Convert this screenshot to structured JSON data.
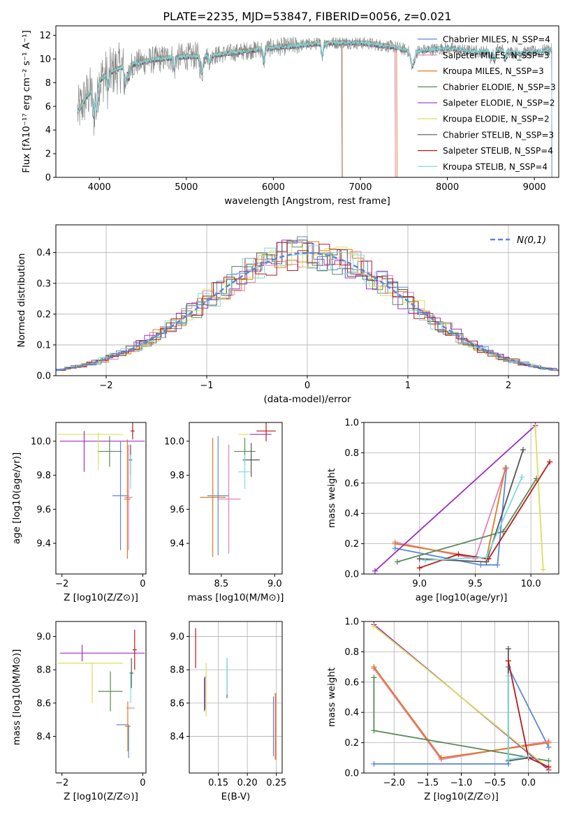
{
  "figure_title": "PLATE=2235, MJD=53847, FIBERID=0056, z=0.021",
  "colors": {
    "Chabrier MILES": "#5b87d8",
    "Salpeter MILES": "#e57fb8",
    "Kroupa MILES": "#e07a1f",
    "Chabrier ELODIE": "#5a8a5a",
    "Salpeter ELODIE": "#9b30c0",
    "Kroupa ELODIE": "#d8e05a",
    "Chabrier STELIB": "#555555",
    "Salpeter STELIB": "#b81818",
    "Kroupa STELIB": "#7fdbe0",
    "data_gray": "#8a8a8a",
    "normal_curve": "#5b87d8"
  },
  "chart_data": [
    {
      "id": "spectrum",
      "type": "line",
      "title": "PLATE=2235, MJD=53847, FIBERID=0056, z=0.021",
      "xlabel": "wavelength [Angstrom, rest frame]",
      "ylabel": "Flux [fλ10⁻¹⁷ erg cm⁻² s⁻¹ A⁻¹]",
      "xlim": [
        3500,
        9280
      ],
      "ylim": [
        0,
        12.8
      ],
      "xticks": [
        4000,
        5000,
        6000,
        7000,
        8000,
        9000
      ],
      "yticks": [
        0,
        2,
        4,
        6,
        8,
        10,
        12
      ],
      "grid": false,
      "legend_position": "top-right",
      "legend": [
        "Chabrier MILES, N_SSP=4",
        "Salpeter MILES, N_SSP=3",
        "Kroupa MILES, N_SSP=3",
        "Chabrier ELODIE, N_SSP=3",
        "Salpeter ELODIE, N_SSP=2",
        "Kroupa ELODIE, N_SSP=2",
        "Chabrier STELIB, N_SSP=3",
        "Salpeter STELIB, N_SSP=4",
        "Kroupa STELIB, N_SSP=4"
      ],
      "continuum": {
        "x": [
          3750,
          3850,
          4000,
          4100,
          4250,
          4400,
          4600,
          4800,
          5000,
          5300,
          5600,
          5900,
          6200,
          6500,
          6800,
          7100,
          7400,
          7600,
          7800,
          8000,
          8200,
          8400,
          8600,
          8800,
          9000,
          9200
        ],
        "y": [
          5.5,
          6.8,
          8.2,
          8.8,
          9.3,
          9.6,
          9.9,
          10.1,
          10.2,
          10.3,
          10.6,
          10.9,
          11.1,
          11.3,
          11.4,
          11.3,
          11.0,
          10.6,
          10.8,
          10.9,
          10.7,
          10.6,
          10.8,
          10.5,
          10.6,
          10.8
        ]
      }
    },
    {
      "id": "residuals",
      "type": "line",
      "xlabel": "(data-model)/error",
      "ylabel": "Normed distribution",
      "xlim": [
        -2.5,
        2.5
      ],
      "ylim": [
        0,
        0.49
      ],
      "xticks": [
        -2,
        -1,
        0,
        1,
        2
      ],
      "yticks": [
        0.0,
        0.1,
        0.2,
        0.3,
        0.4
      ],
      "grid": true,
      "legend_position": "top-right",
      "legend": [
        "N(0,1)"
      ],
      "series": [
        {
          "name": "N(0,1)",
          "mean": 0,
          "std": 1
        }
      ]
    },
    {
      "id": "age_vs_z",
      "type": "scatter",
      "xlabel": "Z [log10(Z/Z⊙)]",
      "ylabel": "age  [log10(age/yr)]",
      "xlim": [
        -2.15,
        0.08
      ],
      "ylim": [
        9.22,
        10.11
      ],
      "xticks": [
        -2,
        0
      ],
      "yticks": [
        9.4,
        9.6,
        9.8,
        10.0
      ],
      "grid": false,
      "points": [
        {
          "model": "Kroupa ELODIE",
          "x": -1.3,
          "xerr": 0.8,
          "y": 10.04,
          "yerr": 0.0
        },
        {
          "model": "Salpeter ELODIE",
          "x": -1.0,
          "xerr": 1.05,
          "y": 10.0,
          "yerr": 0.0
        },
        {
          "model": "Salpeter ELODIE",
          "x": -1.45,
          "xerr": 0.0,
          "y": 9.94,
          "yerr": 0.12
        },
        {
          "model": "Chabrier ELODIE",
          "x": -0.82,
          "xerr": 0.3,
          "y": 9.94,
          "yerr": 0.09
        },
        {
          "model": "Kroupa ELODIE",
          "x": -1.1,
          "xerr": 0.0,
          "y": 9.94,
          "yerr": 0.11
        },
        {
          "model": "Chabrier STELIB",
          "x": -0.3,
          "xerr": 0.04,
          "y": 9.89,
          "yerr": 0.09
        },
        {
          "model": "Salpeter STELIB",
          "x": -0.25,
          "xerr": 0.05,
          "y": 10.06,
          "yerr": 0.05
        },
        {
          "model": "Kroupa STELIB",
          "x": -0.3,
          "xerr": 0.0,
          "y": 9.82,
          "yerr": 0.1
        },
        {
          "model": "Chabrier MILES",
          "x": -0.55,
          "xerr": 0.2,
          "y": 9.68,
          "yerr": 0.32
        },
        {
          "model": "Salpeter MILES",
          "x": -0.35,
          "xerr": 0.1,
          "y": 9.67,
          "yerr": 0.31
        },
        {
          "model": "Kroupa MILES",
          "x": -0.38,
          "xerr": 0.08,
          "y": 9.66,
          "yerr": 0.35
        }
      ]
    },
    {
      "id": "age_vs_mass",
      "type": "scatter",
      "xlabel": "mass [log10(M/M⊙)]",
      "xlim": [
        8.2,
        9.07
      ],
      "ylim": [
        9.22,
        10.11
      ],
      "xticks": [
        8.5,
        9.0
      ],
      "yticks": [
        9.4,
        9.6,
        9.8,
        10.0
      ],
      "grid": false,
      "points": [
        {
          "model": "Kroupa ELODIE",
          "x": 8.78,
          "xerr": 0.12,
          "y": 10.04,
          "yerr": 0.0
        },
        {
          "model": "Salpeter ELODIE",
          "x": 8.87,
          "xerr": 0.1,
          "y": 10.04,
          "yerr": 0.0
        },
        {
          "model": "Chabrier ELODIE",
          "x": 8.72,
          "xerr": 0.1,
          "y": 9.94,
          "yerr": 0.08
        },
        {
          "model": "Chabrier STELIB",
          "x": 8.78,
          "xerr": 0.08,
          "y": 9.89,
          "yerr": 0.1
        },
        {
          "model": "Salpeter STELIB",
          "x": 8.92,
          "xerr": 0.09,
          "y": 10.06,
          "yerr": 0.06
        },
        {
          "model": "Kroupa STELIB",
          "x": 8.72,
          "xerr": 0.06,
          "y": 9.82,
          "yerr": 0.1
        },
        {
          "model": "Chabrier MILES",
          "x": 8.47,
          "xerr": 0.1,
          "y": 9.68,
          "yerr": 0.35
        },
        {
          "model": "Salpeter MILES",
          "x": 8.57,
          "xerr": 0.11,
          "y": 9.66,
          "yerr": 0.32
        },
        {
          "model": "Kroupa MILES",
          "x": 8.42,
          "xerr": 0.12,
          "y": 9.67,
          "yerr": 0.35
        }
      ]
    },
    {
      "id": "mass_weight_vs_age",
      "type": "line",
      "xlabel": "age  [log10(age/yr)]",
      "ylabel": "mass weight",
      "xlim": [
        8.5,
        10.25
      ],
      "ylim": [
        0,
        1.0
      ],
      "xticks": [
        9.0,
        9.5,
        10.0
      ],
      "yticks": [
        0.0,
        0.2,
        0.4,
        0.6,
        0.8,
        1.0
      ],
      "grid": true,
      "series": [
        {
          "model": "Chabrier MILES",
          "x": [
            8.78,
            9.55,
            9.7,
            9.78
          ],
          "y": [
            0.17,
            0.06,
            0.06,
            0.7
          ]
        },
        {
          "model": "Salpeter MILES",
          "x": [
            8.78,
            9.5,
            9.77
          ],
          "y": [
            0.21,
            0.1,
            0.69
          ]
        },
        {
          "model": "Kroupa MILES",
          "x": [
            8.78,
            9.6,
            9.77
          ],
          "y": [
            0.2,
            0.1,
            0.7
          ]
        },
        {
          "model": "Chabrier ELODIE",
          "x": [
            8.8,
            9.75,
            10.05
          ],
          "y": [
            0.08,
            0.28,
            0.63
          ]
        },
        {
          "model": "Salpeter ELODIE",
          "x": [
            8.6,
            10.04
          ],
          "y": [
            0.02,
            0.98
          ]
        },
        {
          "model": "Kroupa ELODIE",
          "x": [
            10.04,
            10.11
          ],
          "y": [
            0.97,
            0.03
          ]
        },
        {
          "model": "Chabrier STELIB",
          "x": [
            9.0,
            9.6,
            9.93
          ],
          "y": [
            0.1,
            0.08,
            0.82
          ]
        },
        {
          "model": "Salpeter STELIB",
          "x": [
            9.0,
            9.35,
            9.62,
            10.17
          ],
          "y": [
            0.04,
            0.13,
            0.1,
            0.74
          ]
        },
        {
          "model": "Kroupa STELIB",
          "x": [
            9.05,
            9.6,
            9.92
          ],
          "y": [
            0.09,
            0.11,
            0.64
          ]
        }
      ]
    },
    {
      "id": "mass_vs_z",
      "type": "scatter",
      "xlabel": "Z [log10(Z/Z⊙)]",
      "ylabel": "mass [log10(M/M⊙)]",
      "xlim": [
        -2.15,
        0.08
      ],
      "ylim": [
        8.18,
        9.09
      ],
      "xticks": [
        -2,
        0
      ],
      "yticks": [
        8.4,
        8.6,
        8.8,
        9.0
      ],
      "grid": false,
      "points": [
        {
          "model": "Salpeter ELODIE",
          "x": -1.5,
          "xerr": 0.0,
          "y": 8.9,
          "yerr": 0.05
        },
        {
          "model": "Salpeter ELODIE",
          "x": -1.0,
          "xerr": 1.05,
          "y": 8.9,
          "yerr": 0.0
        },
        {
          "model": "Kroupa ELODIE",
          "x": -1.3,
          "xerr": 0.8,
          "y": 8.84,
          "yerr": 0.0
        },
        {
          "model": "Kroupa ELODIE",
          "x": -1.25,
          "xerr": 0.0,
          "y": 8.72,
          "yerr": 0.12
        },
        {
          "model": "Chabrier ELODIE",
          "x": -0.8,
          "xerr": 0.3,
          "y": 8.67,
          "yerr": 0.12
        },
        {
          "model": "Chabrier STELIB",
          "x": -0.28,
          "xerr": 0.05,
          "y": 8.78,
          "yerr": 0.09
        },
        {
          "model": "Salpeter STELIB",
          "x": -0.2,
          "xerr": 0.05,
          "y": 8.92,
          "yerr": 0.12
        },
        {
          "model": "Kroupa STELIB",
          "x": -0.3,
          "xerr": 0.0,
          "y": 8.69,
          "yerr": 0.09
        },
        {
          "model": "Salpeter MILES",
          "x": -0.3,
          "xerr": 0.1,
          "y": 8.57,
          "yerr": 0.0
        },
        {
          "model": "Chabrier MILES",
          "x": -0.5,
          "xerr": 0.15,
          "y": 8.47,
          "yerr": 0.0
        },
        {
          "model": "Chabrier MILES",
          "x": -0.35,
          "xerr": 0.0,
          "y": 8.37,
          "yerr": 0.1
        },
        {
          "model": "Kroupa MILES",
          "x": -0.37,
          "xerr": 0.07,
          "y": 8.46,
          "yerr": 0.15
        }
      ]
    },
    {
      "id": "mass_vs_ebv",
      "type": "scatter",
      "xlabel": "E(B-V)",
      "xlim": [
        0.1,
        0.26
      ],
      "ylim": [
        8.18,
        9.09
      ],
      "xticks": [
        0.15,
        0.2,
        0.25
      ],
      "yticks": [
        8.4,
        8.6,
        8.8,
        9.0
      ],
      "grid": true,
      "points": [
        {
          "model": "Salpeter STELIB",
          "y": 8.93,
          "yerr": 0.12,
          "x": 0.111
        },
        {
          "model": "Chabrier ELODIE",
          "y": 8.65,
          "yerr": 0.1,
          "x": 0.126
        },
        {
          "model": "Salpeter ELODIE",
          "y": 8.66,
          "yerr": 0.1,
          "x": 0.127
        },
        {
          "model": "Kroupa ELODIE",
          "y": 8.68,
          "yerr": 0.16,
          "x": 0.129
        },
        {
          "model": "Chabrier STELIB",
          "y": 8.75,
          "yerr": 0.12,
          "x": 0.165
        },
        {
          "model": "Kroupa STELIB",
          "y": 8.76,
          "yerr": 0.11,
          "x": 0.165
        },
        {
          "model": "Chabrier MILES",
          "y": 8.46,
          "yerr": 0.18,
          "x": 0.245
        },
        {
          "model": "Salpeter MILES",
          "y": 8.46,
          "yerr": 0.2,
          "x": 0.248
        },
        {
          "model": "Kroupa MILES",
          "y": 8.46,
          "yerr": 0.2,
          "x": 0.249
        }
      ]
    },
    {
      "id": "mass_weight_vs_z",
      "type": "line",
      "xlabel": "Z [log10(Z/Z⊙)]",
      "ylabel": "mass weight",
      "xlim": [
        -2.45,
        0.45
      ],
      "ylim": [
        0,
        1.0
      ],
      "xticks": [
        -2.0,
        -1.5,
        -1.0,
        -0.5,
        0.0
      ],
      "yticks": [
        0.0,
        0.2,
        0.4,
        0.6,
        0.8,
        1.0
      ],
      "grid": true,
      "series": [
        {
          "model": "Chabrier MILES",
          "x": [
            -2.3,
            -0.3,
            -0.3,
            0.3
          ],
          "y": [
            0.06,
            0.06,
            0.7,
            0.17
          ]
        },
        {
          "model": "Salpeter MILES",
          "x": [
            -2.3,
            -1.3,
            0.3
          ],
          "y": [
            0.69,
            0.09,
            0.21
          ]
        },
        {
          "model": "Kroupa MILES",
          "x": [
            -2.3,
            -1.3,
            0.3
          ],
          "y": [
            0.7,
            0.1,
            0.2
          ]
        },
        {
          "model": "Chabrier ELODIE",
          "x": [
            -2.3,
            -2.3,
            0.3
          ],
          "y": [
            0.63,
            0.28,
            0.08
          ]
        },
        {
          "model": "Salpeter ELODIE",
          "x": [
            -2.3,
            0.3
          ],
          "y": [
            0.98,
            0.02
          ]
        },
        {
          "model": "Kroupa ELODIE",
          "x": [
            -2.3,
            0.3
          ],
          "y": [
            0.97,
            0.03
          ]
        },
        {
          "model": "Chabrier STELIB",
          "x": [
            -0.3,
            -0.3,
            0.0
          ],
          "y": [
            0.82,
            0.08,
            0.1
          ]
        },
        {
          "model": "Salpeter STELIB",
          "x": [
            -0.3,
            0.0,
            0.3
          ],
          "y": [
            0.74,
            0.1,
            0.04
          ]
        },
        {
          "model": "Kroupa STELIB",
          "x": [
            -0.3,
            -0.3,
            0.0
          ],
          "y": [
            0.64,
            0.09,
            0.11
          ]
        }
      ]
    }
  ]
}
